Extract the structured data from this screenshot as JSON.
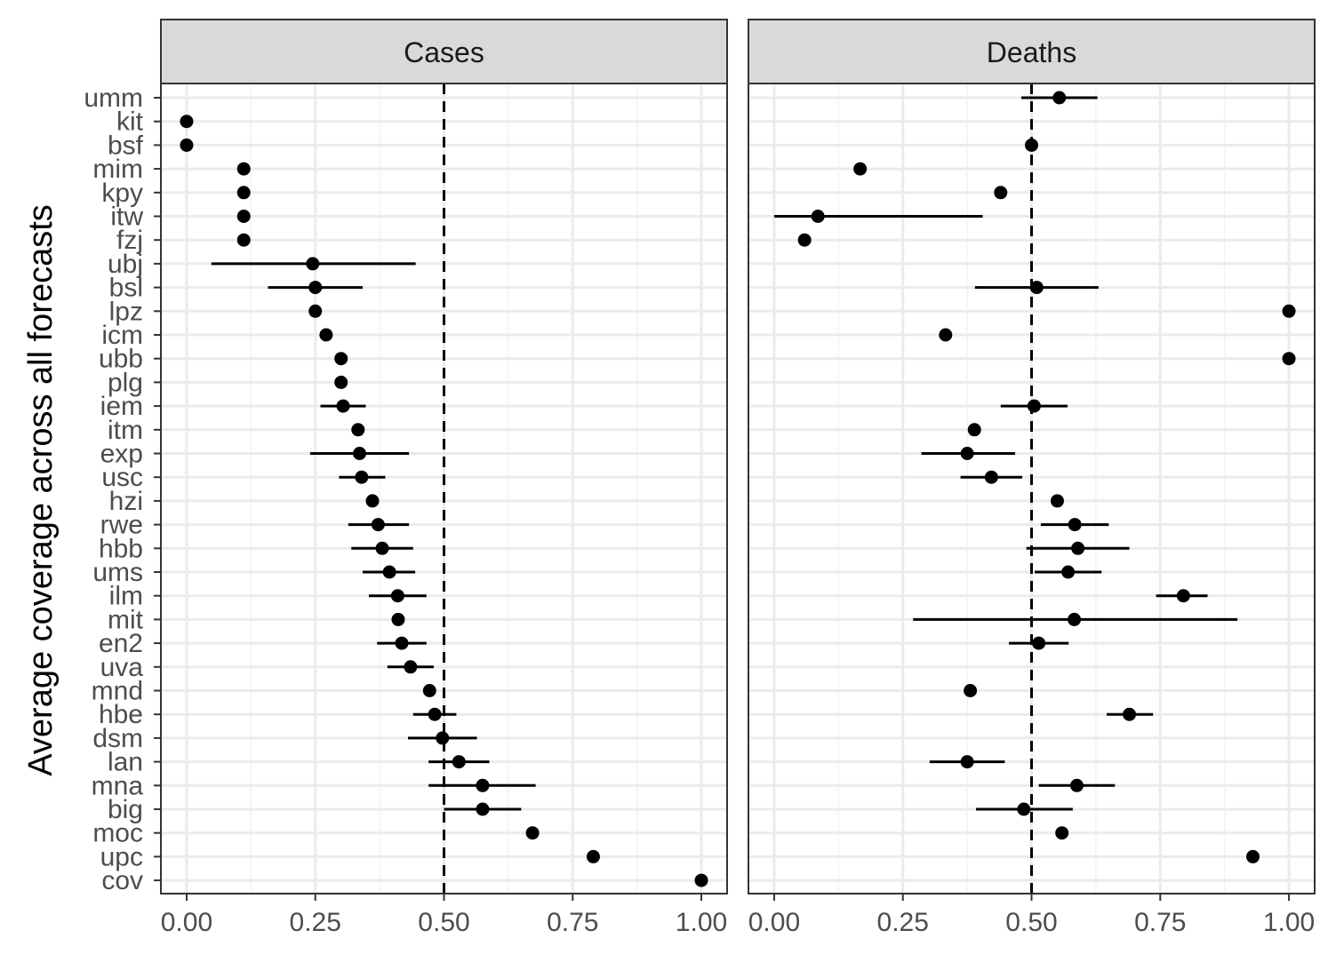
{
  "chart_data": {
    "type": "scatter",
    "ylabel": "Average coverage across all forecasts",
    "xlabel": "",
    "xlim": [
      -0.05,
      1.05
    ],
    "x_ticks": [
      "0.00",
      "0.25",
      "0.50",
      "0.75",
      "1.00"
    ],
    "x_tick_values": [
      0,
      0.25,
      0.5,
      0.75,
      1.0
    ],
    "reference_line_x": 0.5,
    "reference_line_style": "dashed",
    "grid": true,
    "legend": "none",
    "categories": [
      "umm",
      "kit",
      "bsf",
      "mim",
      "kpy",
      "itw",
      "fzj",
      "ubj",
      "bsl",
      "lpz",
      "icm",
      "ubb",
      "plg",
      "iem",
      "itm",
      "exp",
      "usc",
      "hzi",
      "rwe",
      "hbb",
      "ums",
      "ilm",
      "mit",
      "en2",
      "uva",
      "mnd",
      "hbe",
      "dsm",
      "lan",
      "mna",
      "big",
      "moc",
      "upc",
      "cov"
    ],
    "panels": [
      {
        "name": "Cases",
        "points": [
          {
            "model": "umm",
            "x": null,
            "lo": null,
            "hi": null
          },
          {
            "model": "kit",
            "x": 0.0,
            "lo": null,
            "hi": null
          },
          {
            "model": "bsf",
            "x": 0.0,
            "lo": null,
            "hi": null
          },
          {
            "model": "mim",
            "x": 0.111,
            "lo": null,
            "hi": null
          },
          {
            "model": "kpy",
            "x": 0.111,
            "lo": null,
            "hi": null
          },
          {
            "model": "itw",
            "x": 0.111,
            "lo": null,
            "hi": null
          },
          {
            "model": "fzj",
            "x": 0.111,
            "lo": null,
            "hi": null
          },
          {
            "model": "ubj",
            "x": 0.245,
            "lo": 0.048,
            "hi": 0.445
          },
          {
            "model": "bsl",
            "x": 0.25,
            "lo": 0.158,
            "hi": 0.342
          },
          {
            "model": "lpz",
            "x": 0.25,
            "lo": null,
            "hi": null
          },
          {
            "model": "icm",
            "x": 0.271,
            "lo": null,
            "hi": null
          },
          {
            "model": "ubb",
            "x": 0.3,
            "lo": null,
            "hi": null
          },
          {
            "model": "plg",
            "x": 0.3,
            "lo": null,
            "hi": null
          },
          {
            "model": "iem",
            "x": 0.304,
            "lo": 0.26,
            "hi": 0.348
          },
          {
            "model": "itm",
            "x": 0.333,
            "lo": null,
            "hi": null
          },
          {
            "model": "exp",
            "x": 0.336,
            "lo": 0.24,
            "hi": 0.432
          },
          {
            "model": "usc",
            "x": 0.34,
            "lo": 0.296,
            "hi": 0.386
          },
          {
            "model": "hzi",
            "x": 0.361,
            "lo": null,
            "hi": null
          },
          {
            "model": "rwe",
            "x": 0.372,
            "lo": 0.314,
            "hi": 0.432
          },
          {
            "model": "hbb",
            "x": 0.38,
            "lo": 0.32,
            "hi": 0.44
          },
          {
            "model": "ums",
            "x": 0.394,
            "lo": 0.342,
            "hi": 0.444
          },
          {
            "model": "ilm",
            "x": 0.41,
            "lo": 0.354,
            "hi": 0.466
          },
          {
            "model": "mit",
            "x": 0.411,
            "lo": null,
            "hi": null
          },
          {
            "model": "en2",
            "x": 0.418,
            "lo": 0.37,
            "hi": 0.466
          },
          {
            "model": "uva",
            "x": 0.435,
            "lo": 0.39,
            "hi": 0.48
          },
          {
            "model": "mnd",
            "x": 0.472,
            "lo": null,
            "hi": null
          },
          {
            "model": "hbe",
            "x": 0.482,
            "lo": 0.44,
            "hi": 0.524
          },
          {
            "model": "dsm",
            "x": 0.497,
            "lo": 0.43,
            "hi": 0.564
          },
          {
            "model": "lan",
            "x": 0.529,
            "lo": 0.47,
            "hi": 0.588
          },
          {
            "model": "mna",
            "x": 0.575,
            "lo": 0.47,
            "hi": 0.678
          },
          {
            "model": "big",
            "x": 0.575,
            "lo": 0.5,
            "hi": 0.65
          },
          {
            "model": "moc",
            "x": 0.672,
            "lo": null,
            "hi": null
          },
          {
            "model": "upc",
            "x": 0.79,
            "lo": null,
            "hi": null
          },
          {
            "model": "cov",
            "x": 1.0,
            "lo": null,
            "hi": null
          }
        ]
      },
      {
        "name": "Deaths",
        "points": [
          {
            "model": "umm",
            "x": 0.554,
            "lo": 0.48,
            "hi": 0.628
          },
          {
            "model": "kit",
            "x": null,
            "lo": null,
            "hi": null
          },
          {
            "model": "bsf",
            "x": 0.5,
            "lo": null,
            "hi": null
          },
          {
            "model": "mim",
            "x": 0.167,
            "lo": null,
            "hi": null
          },
          {
            "model": "kpy",
            "x": 0.44,
            "lo": null,
            "hi": null
          },
          {
            "model": "itw",
            "x": 0.085,
            "lo": 0.0,
            "hi": 0.405
          },
          {
            "model": "fzj",
            "x": 0.059,
            "lo": null,
            "hi": null
          },
          {
            "model": "ubj",
            "x": null,
            "lo": null,
            "hi": null
          },
          {
            "model": "bsl",
            "x": 0.51,
            "lo": 0.39,
            "hi": 0.63
          },
          {
            "model": "lpz",
            "x": 1.0,
            "lo": null,
            "hi": null
          },
          {
            "model": "icm",
            "x": 0.333,
            "lo": null,
            "hi": null
          },
          {
            "model": "ubb",
            "x": 1.0,
            "lo": null,
            "hi": null
          },
          {
            "model": "plg",
            "x": null,
            "lo": null,
            "hi": null
          },
          {
            "model": "iem",
            "x": 0.505,
            "lo": 0.44,
            "hi": 0.57
          },
          {
            "model": "itm",
            "x": 0.389,
            "lo": null,
            "hi": null
          },
          {
            "model": "exp",
            "x": 0.375,
            "lo": 0.286,
            "hi": 0.468
          },
          {
            "model": "usc",
            "x": 0.422,
            "lo": 0.362,
            "hi": 0.482
          },
          {
            "model": "hzi",
            "x": 0.55,
            "lo": null,
            "hi": null
          },
          {
            "model": "rwe",
            "x": 0.584,
            "lo": 0.518,
            "hi": 0.65
          },
          {
            "model": "hbb",
            "x": 0.59,
            "lo": 0.49,
            "hi": 0.69
          },
          {
            "model": "ums",
            "x": 0.571,
            "lo": 0.506,
            "hi": 0.636
          },
          {
            "model": "ilm",
            "x": 0.795,
            "lo": 0.742,
            "hi": 0.842
          },
          {
            "model": "mit",
            "x": 0.583,
            "lo": 0.27,
            "hi": 0.9
          },
          {
            "model": "en2",
            "x": 0.514,
            "lo": 0.456,
            "hi": 0.572
          },
          {
            "model": "uva",
            "x": null,
            "lo": null,
            "hi": null
          },
          {
            "model": "mnd",
            "x": 0.381,
            "lo": null,
            "hi": null
          },
          {
            "model": "hbe",
            "x": 0.69,
            "lo": 0.646,
            "hi": 0.736
          },
          {
            "model": "dsm",
            "x": null,
            "lo": null,
            "hi": null
          },
          {
            "model": "lan",
            "x": 0.375,
            "lo": 0.302,
            "hi": 0.448
          },
          {
            "model": "mna",
            "x": 0.588,
            "lo": 0.514,
            "hi": 0.662
          },
          {
            "model": "big",
            "x": 0.485,
            "lo": 0.392,
            "hi": 0.58
          },
          {
            "model": "moc",
            "x": 0.559,
            "lo": null,
            "hi": null
          },
          {
            "model": "upc",
            "x": 0.93,
            "lo": null,
            "hi": null
          },
          {
            "model": "cov",
            "x": null,
            "lo": null,
            "hi": null
          }
        ]
      }
    ]
  }
}
